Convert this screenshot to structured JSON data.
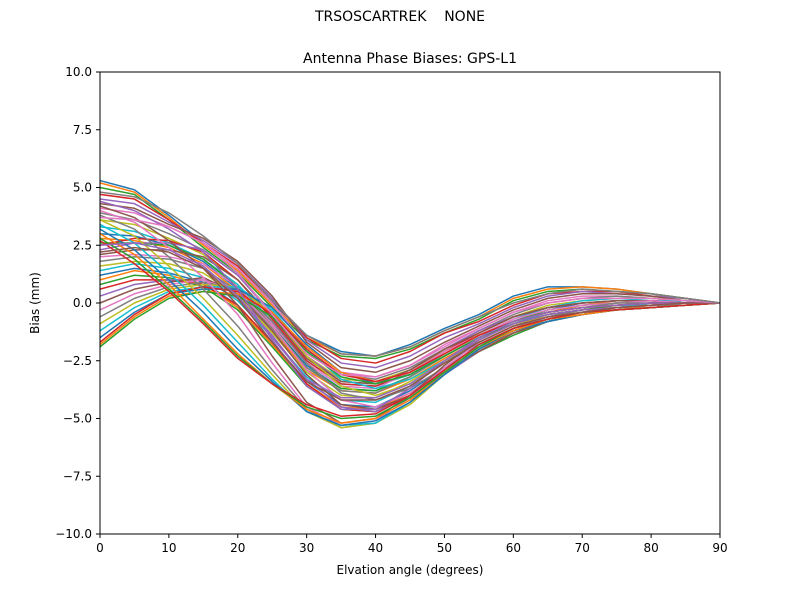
{
  "figure": {
    "suptitle": "TRSOSCARTREK    NONE"
  },
  "chart_data": {
    "type": "line",
    "title": "Antenna Phase Biases: GPS-L1",
    "xlabel": "Elvation angle (degrees)",
    "ylabel": "Bias (mm)",
    "xlim": [
      0,
      90
    ],
    "ylim": [
      -10,
      10
    ],
    "xticks": [
      0,
      10,
      20,
      30,
      40,
      50,
      60,
      70,
      80,
      90
    ],
    "yticks": [
      -10.0,
      -7.5,
      -5.0,
      -2.5,
      0.0,
      2.5,
      5.0,
      7.5,
      10.0
    ],
    "ytick_labels": [
      "−10.0",
      "−7.5",
      "−5.0",
      "−2.5",
      "0.0",
      "2.5",
      "5.0",
      "7.5",
      "10.0"
    ],
    "grid": false,
    "legend": "none",
    "colors": [
      "#1f77b4",
      "#ff7f0e",
      "#2ca02c",
      "#d62728",
      "#9467bd",
      "#8c564b",
      "#e377c2",
      "#7f7f7f",
      "#bcbd22",
      "#17becf"
    ],
    "x": [
      0,
      5,
      10,
      15,
      20,
      25,
      30,
      35,
      40,
      45,
      50,
      55,
      60,
      65,
      70,
      75,
      80,
      85,
      90
    ],
    "series": [
      {
        "values": [
          5.3,
          4.9,
          3.8,
          2.6,
          1.5,
          0.0,
          -1.4,
          -2.1,
          -2.3,
          -1.8,
          -1.1,
          -0.5,
          0.3,
          0.7,
          0.7,
          0.6,
          0.4,
          0.2,
          0.0
        ]
      },
      {
        "values": [
          5.2,
          4.8,
          3.7,
          2.5,
          1.4,
          -0.1,
          -1.5,
          -2.2,
          -2.3,
          -1.9,
          -1.2,
          -0.6,
          0.2,
          0.6,
          0.7,
          0.6,
          0.4,
          0.2,
          0.0
        ]
      },
      {
        "values": [
          5.0,
          4.7,
          3.6,
          2.4,
          1.3,
          -0.2,
          -1.6,
          -2.3,
          -2.4,
          -2.0,
          -1.3,
          -0.7,
          0.1,
          0.5,
          0.6,
          0.5,
          0.4,
          0.2,
          0.0
        ]
      },
      {
        "values": [
          4.7,
          4.5,
          3.6,
          2.6,
          1.6,
          0.1,
          -1.5,
          -2.4,
          -2.6,
          -2.1,
          -1.3,
          -0.8,
          -0.1,
          0.4,
          0.5,
          0.5,
          0.3,
          0.2,
          0.0
        ]
      },
      {
        "values": [
          4.5,
          4.3,
          3.5,
          2.7,
          1.7,
          0.2,
          -1.6,
          -2.6,
          -2.8,
          -2.3,
          -1.5,
          -0.9,
          -0.2,
          0.3,
          0.5,
          0.4,
          0.3,
          0.2,
          0.0
        ]
      },
      {
        "values": [
          4.3,
          4.1,
          3.4,
          2.8,
          1.8,
          0.3,
          -1.7,
          -2.8,
          -3.0,
          -2.5,
          -1.7,
          -1.0,
          -0.3,
          0.2,
          0.4,
          0.4,
          0.3,
          0.1,
          0.0
        ]
      },
      {
        "values": [
          4.1,
          3.9,
          3.3,
          2.6,
          1.5,
          0.0,
          -1.9,
          -3.0,
          -3.2,
          -2.7,
          -1.8,
          -1.1,
          -0.4,
          0.1,
          0.3,
          0.3,
          0.2,
          0.1,
          0.0
        ]
      },
      {
        "values": [
          3.9,
          3.6,
          3.0,
          2.3,
          1.2,
          -0.4,
          -2.1,
          -3.1,
          -3.3,
          -2.8,
          -2.0,
          -1.2,
          -0.5,
          0.0,
          0.2,
          0.3,
          0.2,
          0.1,
          0.0
        ]
      },
      {
        "values": [
          3.6,
          3.4,
          2.8,
          2.1,
          1.0,
          -0.6,
          -2.3,
          -3.3,
          -3.4,
          -2.9,
          -2.1,
          -1.3,
          -0.6,
          -0.1,
          0.1,
          0.2,
          0.2,
          0.1,
          0.0
        ]
      },
      {
        "values": [
          3.3,
          3.1,
          2.6,
          1.9,
          0.8,
          -0.8,
          -2.5,
          -3.5,
          -3.6,
          -3.1,
          -2.2,
          -1.4,
          -0.7,
          -0.2,
          0.1,
          0.2,
          0.1,
          0.1,
          0.0
        ]
      },
      {
        "values": [
          3.0,
          2.9,
          2.5,
          1.8,
          0.6,
          -1.0,
          -2.7,
          -3.7,
          -3.8,
          -3.2,
          -2.3,
          -1.5,
          -0.8,
          -0.3,
          0.0,
          0.1,
          0.1,
          0.0,
          0.0
        ]
      },
      {
        "values": [
          2.8,
          2.7,
          2.4,
          1.7,
          0.5,
          -1.2,
          -2.9,
          -3.8,
          -3.9,
          -3.3,
          -2.4,
          -1.6,
          -0.9,
          -0.4,
          -0.1,
          0.1,
          0.1,
          0.0,
          0.0
        ]
      },
      {
        "values": [
          2.6,
          2.6,
          2.5,
          1.9,
          0.7,
          -1.0,
          -2.8,
          -3.7,
          -3.8,
          -3.2,
          -2.3,
          -1.5,
          -0.8,
          -0.3,
          -0.1,
          0.0,
          0.1,
          0.0,
          0.0
        ]
      },
      {
        "values": [
          2.5,
          2.8,
          2.7,
          2.2,
          1.0,
          -0.7,
          -2.5,
          -3.5,
          -3.6,
          -3.0,
          -2.1,
          -1.3,
          -0.6,
          -0.2,
          0.0,
          0.1,
          0.1,
          0.0,
          0.0
        ]
      },
      {
        "values": [
          2.3,
          2.6,
          2.6,
          2.3,
          1.2,
          -0.5,
          -2.3,
          -3.4,
          -3.5,
          -2.9,
          -2.0,
          -1.2,
          -0.6,
          -0.2,
          0.0,
          0.1,
          0.1,
          0.0,
          0.0
        ]
      },
      {
        "values": [
          2.1,
          2.3,
          2.3,
          2.0,
          1.0,
          -0.6,
          -2.4,
          -3.4,
          -3.5,
          -2.9,
          -2.0,
          -1.3,
          -0.6,
          -0.2,
          0.0,
          0.1,
          0.1,
          0.0,
          0.0
        ]
      },
      {
        "values": [
          2.0,
          2.1,
          2.0,
          1.7,
          0.7,
          -0.9,
          -2.6,
          -3.6,
          -3.7,
          -3.0,
          -2.1,
          -1.4,
          -0.7,
          -0.3,
          -0.1,
          0.0,
          0.1,
          0.0,
          0.0
        ]
      },
      {
        "values": [
          1.8,
          2.0,
          1.9,
          1.5,
          0.5,
          -1.1,
          -2.8,
          -3.8,
          -3.9,
          -3.2,
          -2.3,
          -1.5,
          -0.8,
          -0.4,
          -0.2,
          0.0,
          0.0,
          0.0,
          0.0
        ]
      },
      {
        "values": [
          1.6,
          1.8,
          1.7,
          1.3,
          0.3,
          -1.3,
          -3.0,
          -4.0,
          -4.1,
          -3.4,
          -2.5,
          -1.7,
          -1.0,
          -0.5,
          -0.3,
          -0.1,
          0.0,
          0.0,
          0.0
        ]
      },
      {
        "values": [
          1.4,
          1.7,
          1.5,
          1.1,
          0.1,
          -1.5,
          -3.2,
          -4.2,
          -4.3,
          -3.6,
          -2.6,
          -1.8,
          -1.1,
          -0.6,
          -0.3,
          -0.2,
          0.0,
          0.0,
          0.0
        ]
      },
      {
        "values": [
          1.2,
          1.5,
          1.3,
          0.9,
          -0.1,
          -1.7,
          -3.4,
          -4.4,
          -4.5,
          -3.8,
          -2.8,
          -1.9,
          -1.2,
          -0.7,
          -0.4,
          -0.2,
          -0.1,
          0.0,
          0.0
        ]
      },
      {
        "values": [
          1.0,
          1.4,
          1.2,
          0.8,
          -0.2,
          -1.8,
          -3.5,
          -4.5,
          -4.6,
          -3.9,
          -2.9,
          -2.0,
          -1.3,
          -0.8,
          -0.5,
          -0.3,
          -0.1,
          0.0,
          0.0
        ]
      },
      {
        "values": [
          0.8,
          1.2,
          1.1,
          0.7,
          -0.3,
          -1.9,
          -3.6,
          -4.6,
          -4.7,
          -4.0,
          -3.0,
          -2.1,
          -1.4,
          -0.8,
          -0.5,
          -0.3,
          -0.2,
          -0.1,
          0.0
        ]
      },
      {
        "values": [
          0.6,
          1.0,
          1.0,
          0.8,
          -0.1,
          -1.7,
          -3.5,
          -4.6,
          -4.7,
          -4.0,
          -3.0,
          -2.1,
          -1.3,
          -0.8,
          -0.5,
          -0.3,
          -0.2,
          -0.1,
          0.0
        ]
      },
      {
        "values": [
          0.3,
          0.8,
          1.0,
          1.0,
          0.2,
          -1.4,
          -3.3,
          -4.5,
          -4.7,
          -4.1,
          -3.1,
          -2.1,
          -1.3,
          -0.8,
          -0.5,
          -0.3,
          -0.2,
          -0.1,
          0.0
        ]
      },
      {
        "values": [
          0.0,
          0.6,
          0.9,
          1.1,
          0.4,
          -1.2,
          -3.1,
          -4.4,
          -4.6,
          -4.0,
          -3.0,
          -2.1,
          -1.3,
          -0.8,
          -0.5,
          -0.3,
          -0.2,
          -0.1,
          0.0
        ]
      },
      {
        "values": [
          -0.3,
          0.4,
          0.8,
          1.0,
          0.5,
          -1.0,
          -2.9,
          -4.2,
          -4.5,
          -3.9,
          -2.9,
          -2.0,
          -1.2,
          -0.7,
          -0.4,
          -0.3,
          -0.2,
          -0.1,
          0.0
        ]
      },
      {
        "values": [
          -0.6,
          0.2,
          0.7,
          0.9,
          0.6,
          -0.8,
          -2.6,
          -3.9,
          -4.2,
          -3.7,
          -2.8,
          -1.9,
          -1.1,
          -0.6,
          -0.3,
          -0.2,
          -0.1,
          -0.1,
          0.0
        ]
      },
      {
        "values": [
          -0.9,
          0.0,
          0.6,
          0.8,
          0.7,
          -0.5,
          -2.3,
          -3.6,
          -4.0,
          -3.5,
          -2.6,
          -1.7,
          -1.0,
          -0.5,
          -0.3,
          -0.2,
          -0.1,
          0.0,
          0.0
        ]
      },
      {
        "values": [
          -1.2,
          -0.2,
          0.5,
          0.7,
          0.7,
          -0.3,
          -2.0,
          -3.3,
          -3.7,
          -3.3,
          -2.5,
          -1.6,
          -0.9,
          -0.4,
          -0.2,
          -0.1,
          -0.1,
          0.0,
          0.0
        ]
      },
      {
        "values": [
          -1.5,
          -0.4,
          0.4,
          0.6,
          0.6,
          -0.2,
          -1.8,
          -3.0,
          -3.5,
          -3.1,
          -2.3,
          -1.5,
          -0.8,
          -0.4,
          -0.2,
          -0.1,
          0.0,
          0.0,
          0.0
        ]
      },
      {
        "values": [
          -1.8,
          -0.6,
          0.3,
          0.5,
          0.4,
          -0.4,
          -1.9,
          -3.0,
          -3.4,
          -3.0,
          -2.2,
          -1.4,
          -0.8,
          -0.4,
          -0.2,
          -0.1,
          0.0,
          0.0,
          0.0
        ]
      },
      {
        "values": [
          -1.9,
          -0.7,
          0.2,
          0.5,
          0.3,
          -0.6,
          -2.1,
          -3.2,
          -3.5,
          -3.1,
          -2.3,
          -1.5,
          -0.9,
          -0.5,
          -0.3,
          -0.1,
          0.0,
          0.0,
          0.0
        ]
      },
      {
        "values": [
          -1.7,
          -0.5,
          0.4,
          0.7,
          0.5,
          -0.5,
          -2.0,
          -3.1,
          -3.4,
          -3.0,
          -2.2,
          -1.4,
          -0.8,
          -0.4,
          -0.2,
          -0.1,
          0.0,
          0.0,
          0.0
        ]
      },
      {
        "values": [
          4.4,
          4.0,
          3.2,
          2.2,
          0.6,
          -1.6,
          -3.6,
          -4.6,
          -4.6,
          -3.7,
          -2.5,
          -1.5,
          -0.8,
          -0.4,
          -0.2,
          -0.1,
          0.0,
          0.0,
          0.0
        ]
      },
      {
        "values": [
          4.2,
          3.7,
          2.7,
          1.5,
          -0.1,
          -2.3,
          -4.3,
          -5.2,
          -5.0,
          -4.0,
          -2.7,
          -1.6,
          -0.9,
          -0.5,
          -0.3,
          -0.2,
          -0.1,
          0.0,
          0.0
        ]
      },
      {
        "values": [
          4.0,
          3.5,
          2.4,
          1.1,
          -0.5,
          -2.6,
          -4.5,
          -5.3,
          -5.1,
          -4.1,
          -2.8,
          -1.7,
          -1.0,
          -0.6,
          -0.4,
          -0.2,
          -0.1,
          0.0,
          0.0
        ]
      },
      {
        "values": [
          3.8,
          3.2,
          2.0,
          0.6,
          -1.0,
          -2.9,
          -4.6,
          -5.4,
          -5.2,
          -4.3,
          -2.9,
          -1.8,
          -1.1,
          -0.7,
          -0.5,
          -0.3,
          -0.2,
          -0.1,
          0.0
        ]
      },
      {
        "values": [
          3.6,
          2.9,
          1.6,
          0.2,
          -1.4,
          -3.1,
          -4.7,
          -5.4,
          -5.2,
          -4.4,
          -3.1,
          -2.0,
          -1.2,
          -0.8,
          -0.5,
          -0.3,
          -0.2,
          -0.1,
          0.0
        ]
      },
      {
        "values": [
          3.4,
          2.6,
          1.3,
          -0.1,
          -1.7,
          -3.3,
          -4.7,
          -5.3,
          -5.2,
          -4.3,
          -3.1,
          -2.0,
          -1.2,
          -0.8,
          -0.5,
          -0.3,
          -0.2,
          -0.1,
          0.0
        ]
      },
      {
        "values": [
          3.2,
          2.3,
          1.0,
          -0.4,
          -2.0,
          -3.4,
          -4.7,
          -5.3,
          -5.1,
          -4.3,
          -3.1,
          -2.0,
          -1.2,
          -0.8,
          -0.5,
          -0.3,
          -0.2,
          -0.1,
          0.0
        ]
      },
      {
        "values": [
          3.0,
          2.1,
          0.8,
          -0.7,
          -2.2,
          -3.5,
          -4.6,
          -5.2,
          -5.0,
          -4.2,
          -3.0,
          -1.9,
          -1.2,
          -0.7,
          -0.5,
          -0.3,
          -0.2,
          -0.1,
          0.0
        ]
      },
      {
        "values": [
          2.8,
          1.9,
          0.6,
          -0.8,
          -2.3,
          -3.5,
          -4.5,
          -5.0,
          -4.9,
          -4.1,
          -3.0,
          -1.9,
          -1.1,
          -0.7,
          -0.4,
          -0.3,
          -0.2,
          -0.1,
          0.0
        ]
      },
      {
        "values": [
          2.7,
          1.7,
          0.5,
          -0.9,
          -2.4,
          -3.5,
          -4.4,
          -4.9,
          -4.8,
          -4.0,
          -2.9,
          -1.8,
          -1.1,
          -0.7,
          -0.4,
          -0.3,
          -0.2,
          -0.1,
          0.0
        ]
      },
      {
        "values": [
          2.5,
          2.6,
          2.3,
          1.6,
          0.3,
          -1.5,
          -3.3,
          -4.1,
          -4.1,
          -3.5,
          -2.5,
          -1.6,
          -0.9,
          -0.5,
          -0.3,
          -0.2,
          -0.1,
          0.0,
          0.0
        ]
      },
      {
        "values": [
          2.2,
          2.4,
          2.2,
          1.5,
          0.2,
          -1.7,
          -3.4,
          -4.2,
          -4.2,
          -3.6,
          -2.6,
          -1.7,
          -1.0,
          -0.6,
          -0.4,
          -0.2,
          -0.1,
          0.0,
          0.0
        ]
      },
      {
        "values": [
          3.7,
          3.6,
          3.3,
          2.6,
          1.3,
          -0.5,
          -2.2,
          -3.1,
          -3.2,
          -2.7,
          -1.9,
          -1.1,
          -0.4,
          0.0,
          0.2,
          0.2,
          0.2,
          0.1,
          0.0
        ]
      },
      {
        "values": [
          4.8,
          4.6,
          3.9,
          2.9,
          1.7,
          0.1,
          -1.4,
          -2.2,
          -2.3,
          -1.9,
          -1.2,
          -0.6,
          0.0,
          0.4,
          0.6,
          0.5,
          0.4,
          0.2,
          0.0
        ]
      }
    ]
  }
}
